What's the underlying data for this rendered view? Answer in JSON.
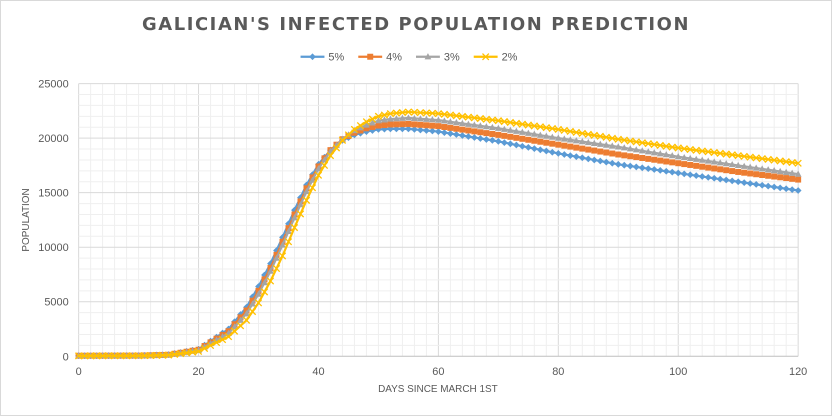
{
  "chart_data": {
    "type": "line",
    "title": "GALICIAN'S INFECTED POPULATION PREDICTION",
    "xlabel": "DAYS SINCE MARCH 1ST",
    "ylabel": "POPULATION",
    "xlim": [
      0,
      120
    ],
    "ylim": [
      0,
      25000
    ],
    "x_ticks": [
      0,
      20,
      40,
      60,
      80,
      100,
      120
    ],
    "y_ticks": [
      0,
      5000,
      10000,
      15000,
      20000,
      25000
    ],
    "grid": true,
    "legend_position": "top",
    "series": [
      {
        "name": "5%",
        "color": "#5b9bd5",
        "marker": "diamond",
        "x": [
          0,
          10,
          15,
          20,
          25,
          28,
          30,
          32,
          34,
          36,
          38,
          40,
          42,
          44,
          46,
          48,
          50,
          52,
          55,
          60,
          70,
          80,
          90,
          100,
          110,
          120
        ],
        "y": [
          50,
          60,
          150,
          650,
          2500,
          4500,
          6400,
          8500,
          10900,
          13400,
          15700,
          17600,
          18900,
          19800,
          20300,
          20600,
          20800,
          20850,
          20850,
          20600,
          19700,
          18600,
          17600,
          16800,
          16000,
          15200
        ]
      },
      {
        "name": "4%",
        "color": "#ed7d31",
        "marker": "square",
        "x": [
          0,
          10,
          15,
          20,
          25,
          28,
          30,
          32,
          34,
          36,
          38,
          40,
          42,
          44,
          46,
          48,
          50,
          52,
          55,
          60,
          70,
          80,
          90,
          100,
          110,
          120
        ],
        "y": [
          50,
          60,
          140,
          600,
          2300,
          4200,
          6000,
          8100,
          10500,
          13000,
          15400,
          17400,
          18900,
          19900,
          20500,
          20900,
          21150,
          21250,
          21300,
          21100,
          20300,
          19400,
          18500,
          17700,
          16900,
          16200
        ]
      },
      {
        "name": "3%",
        "color": "#a5a5a5",
        "marker": "triangle",
        "x": [
          0,
          10,
          15,
          20,
          25,
          28,
          30,
          32,
          34,
          36,
          38,
          40,
          42,
          44,
          46,
          48,
          50,
          52,
          55,
          60,
          70,
          80,
          90,
          100,
          110,
          120
        ],
        "y": [
          50,
          55,
          130,
          550,
          2100,
          3900,
          5700,
          7800,
          10200,
          12700,
          15100,
          17200,
          18800,
          19900,
          20700,
          21200,
          21600,
          21750,
          21850,
          21650,
          20900,
          20000,
          19200,
          18300,
          17500,
          16700
        ]
      },
      {
        "name": "2%",
        "color": "#ffc000",
        "marker": "cross",
        "x": [
          0,
          10,
          15,
          20,
          25,
          28,
          30,
          32,
          34,
          36,
          38,
          40,
          42,
          44,
          46,
          48,
          50,
          52,
          55,
          60,
          70,
          80,
          90,
          100,
          110,
          120
        ],
        "y": [
          40,
          50,
          110,
          450,
          1800,
          3300,
          4900,
          6900,
          9200,
          11800,
          14300,
          16600,
          18400,
          19800,
          20800,
          21500,
          22000,
          22250,
          22400,
          22250,
          21600,
          20800,
          19900,
          19100,
          18400,
          17700
        ]
      }
    ]
  }
}
